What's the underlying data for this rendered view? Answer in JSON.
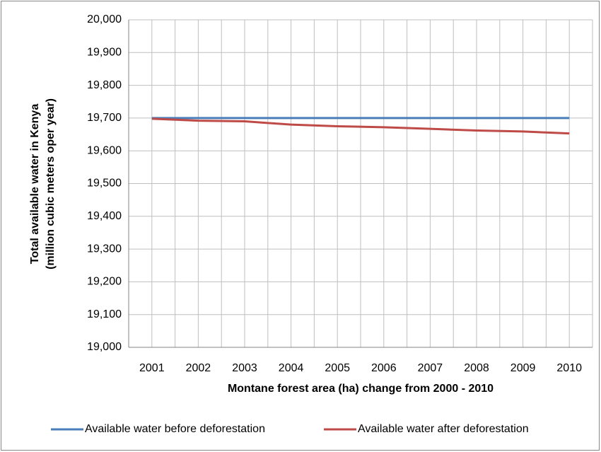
{
  "chart_data": {
    "type": "line",
    "ylabel": [
      "Total available water in Kenya",
      "(million cubic meters oper year)"
    ],
    "xlabel": "Montane forest area (ha) change from 2000 - 2010",
    "categories": [
      "2001",
      "2002",
      "2003",
      "2004",
      "2005",
      "2006",
      "2007",
      "2008",
      "2009",
      "2010"
    ],
    "series": [
      {
        "name": "Available water before deforestation",
        "color": "#4a7ebb",
        "values": [
          19700,
          19700,
          19700,
          19700,
          19700,
          19700,
          19700,
          19700,
          19700,
          19700
        ]
      },
      {
        "name": "Available water after deforestation",
        "color": "#be4b48",
        "values": [
          19698,
          19692,
          19690,
          19680,
          19675,
          19672,
          19667,
          19662,
          19659,
          19653
        ]
      }
    ],
    "ylim": [
      19000,
      20000
    ],
    "yticks": [
      {
        "value": 19000,
        "label": "19,000"
      },
      {
        "value": 19100,
        "label": "19,100"
      },
      {
        "value": 19200,
        "label": "19,200"
      },
      {
        "value": 19300,
        "label": "19,300"
      },
      {
        "value": 19400,
        "label": "19,400"
      },
      {
        "value": 19500,
        "label": "19,500"
      },
      {
        "value": 19600,
        "label": "19,600"
      },
      {
        "value": 19700,
        "label": "19,700"
      },
      {
        "value": 19800,
        "label": "19,800"
      },
      {
        "value": 19900,
        "label": "19,900"
      },
      {
        "value": 20000,
        "label": "20,000"
      }
    ],
    "grid": true,
    "legend": "bottom"
  }
}
